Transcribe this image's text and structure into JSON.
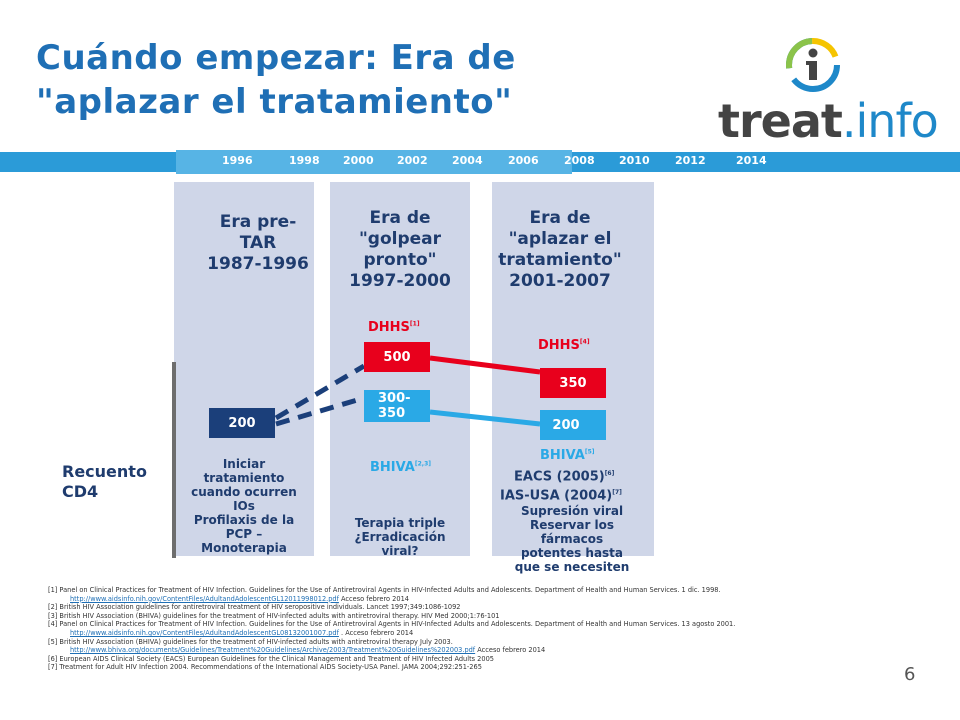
{
  "slide": {
    "title_line1": "Cuándo empezar: Era de",
    "title_line2": "\"aplazar el tratamiento\"",
    "page_number": "6"
  },
  "logo": {
    "part1": "treat",
    "part2": ".info",
    "icon": "info-i-logo-icon"
  },
  "timeline": {
    "years": [
      "1996",
      "1998",
      "2000",
      "2002",
      "2004",
      "2006",
      "2008",
      "2010",
      "2012",
      "2014"
    ]
  },
  "eras": [
    {
      "lines": [
        "Era pre-",
        "TAR",
        "1987-1996"
      ]
    },
    {
      "lines": [
        "Era de",
        "\"golpear",
        "pronto\"",
        "1997-2000"
      ]
    },
    {
      "lines": [
        "Era de",
        "\"aplazar el",
        "tratamiento\"",
        "2001-2007"
      ]
    }
  ],
  "era1": {
    "value": "200",
    "note_lines": [
      "Iniciar",
      "tratamiento",
      "cuando ocurren",
      "IOs",
      "Profilaxis de la",
      "PCP –",
      "Monoterapia"
    ]
  },
  "era2": {
    "dhhs_label": "DHHS",
    "dhhs_ref": "[1]",
    "high_value": "500",
    "low_value_lines": [
      "300-",
      "350"
    ],
    "bhiva_label": "BHIVA",
    "bhiva_ref": "[2,3]",
    "note_lines": [
      "Terapia triple",
      "¿Erradicación",
      "viral?"
    ]
  },
  "era3": {
    "dhhs_label": "DHHS",
    "dhhs_ref": "[4]",
    "high_value": "350",
    "low_value": "200",
    "guidelines": [
      {
        "label": "BHIVA",
        "ref": "[5]"
      },
      {
        "label": "EACS (2005)",
        "ref": "[6]"
      },
      {
        "label": "IAS-USA (2004)",
        "ref": "[7]"
      }
    ],
    "note_lines": [
      "Supresión viral",
      "Reservar los",
      "fármacos",
      "potentes hasta",
      "que se necesiten"
    ]
  },
  "recuento_lines": [
    "Recuento",
    "CD4"
  ],
  "colors": {
    "accent": "#1f6fb5",
    "navy": "#1b3f7a",
    "red": "#e8001c",
    "blue": "#2aa9e6",
    "column": "#cfd6e8"
  },
  "references": {
    "r1": "[1] Panel on Clinical Practices for Treatment of HIV Infection. Guidelines for the Use of Antiretroviral Agents in HIV-Infected Adults and Adolescents. Department of Health and Human Services. 1 dic. 1998.",
    "r1_link": "http://www.aidsinfo.nih.gov/ContentFiles/AdultandAdolescentGL12011998012.pdf",
    "r1_access": " Acceso febrero 2014",
    "r2": "[2] British HIV Association guidelines for antiretroviral treatment of HIV seropositive individuals. Lancet 1997;349:1086-1092",
    "r3": "[3] British HIV Association (BHIVA) guidelines for the treatment of HIV-infected adults with antiretroviral therapy. HIV Med 2000;1:76-101",
    "r4": "[4] Panel on Clinical Practices for Treatment of HIV Infection. Guidelines for the Use of Antiretroviral Agents in HIV-Infected Adults and Adolescents. Department of Health and Human Services. 13 agosto 2001.",
    "r4_link": "http://www.aidsinfo.nih.gov/ContentFiles/AdultandAdolescentGL08132001007.pdf",
    "r4_access": " . Acceso febrero 2014",
    "r5": "[5] British HIV Association (BHIVA) guidelines for the treatment of HIV-infected adults with antiretroviral therapy July 2003.",
    "r5_link": "http://www.bhiva.org/documents/Guidelines/Treatment%20Guidelines/Archive/2003/Treatment%20Guidelines%202003.pdf",
    "r5_access": " Acceso febrero 2014",
    "r6": "[6] European AIDS Clinical Society (EACS) European Guidelines for the Clinical Management and Treatment of HIV Infected Adults 2005",
    "r7": "[7] Treatment for Adult HIV Infection 2004. Recommendations of the International AIDS Society-USA Panel. JAMA 2004;292:251-265"
  }
}
